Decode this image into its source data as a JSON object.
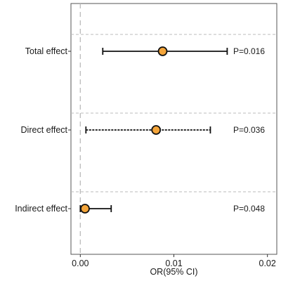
{
  "chart_data": {
    "type": "forest",
    "xlabel": "OR(95% CI)",
    "xlim": [
      -0.001,
      0.021
    ],
    "xticks": [
      {
        "value": 0.0,
        "label": "0.00"
      },
      {
        "value": 0.01,
        "label": "0.01"
      },
      {
        "value": 0.02,
        "label": "0.02"
      }
    ],
    "reference_line": 0,
    "marker_color": "#f4a53a",
    "rows": [
      {
        "label": "Total effect",
        "estimate": 0.0088,
        "ci_low": 0.0024,
        "ci_high": 0.0157,
        "p_text": "P=0.016",
        "line_style": "solid"
      },
      {
        "label": "Direct effect",
        "estimate": 0.0081,
        "ci_low": 0.0006,
        "ci_high": 0.0139,
        "p_text": "P=0.036",
        "line_style": "dashed"
      },
      {
        "label": "Indirect effect",
        "estimate": 0.0005,
        "ci_low": 0.0,
        "ci_high": 0.0033,
        "p_text": "P=0.048",
        "line_style": "solid"
      }
    ]
  }
}
